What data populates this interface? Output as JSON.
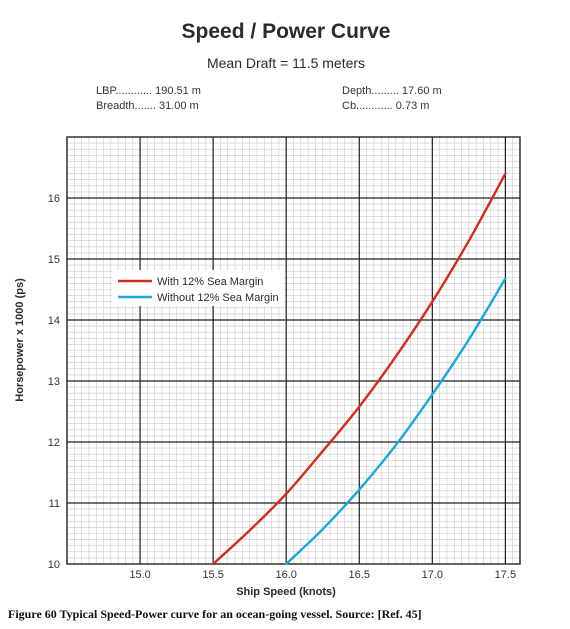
{
  "chart_data": {
    "type": "line",
    "title": "Speed / Power Curve",
    "subtitle": "Mean Draft = 11.5 meters",
    "specs": {
      "lbp": "LBP............ 190.51 m",
      "breadth": "Breadth....... 31.00 m",
      "depth": "Depth......... 17.60 m",
      "cb": "Cb............ 0.73 m"
    },
    "xlabel": "Ship Speed (knots)",
    "ylabel": "Horsepower x 1000 (ps)",
    "xlim": [
      14.5,
      17.6
    ],
    "ylim": [
      10,
      17
    ],
    "x_ticks": [
      "15.0",
      "15.5",
      "16.0",
      "16.5",
      "17.0",
      "17.5"
    ],
    "y_ticks": [
      "10",
      "11",
      "12",
      "13",
      "14",
      "15",
      "16"
    ],
    "grid": true,
    "legend_position": "left-center",
    "series": [
      {
        "name": "With 12% Sea Margin",
        "color": "#d42b1e",
        "x": [
          15.5,
          15.75,
          16.0,
          16.25,
          16.5,
          16.75,
          17.0,
          17.25,
          17.5
        ],
        "y": [
          10.0,
          10.55,
          11.15,
          11.85,
          12.58,
          13.4,
          14.3,
          15.3,
          16.4
        ]
      },
      {
        "name": "Without 12% Sea Margin",
        "color": "#1aa7e0",
        "x": [
          16.0,
          16.25,
          16.5,
          16.75,
          17.0,
          17.25,
          17.5
        ],
        "y": [
          10.0,
          10.57,
          11.22,
          11.95,
          12.78,
          13.68,
          14.68
        ]
      }
    ]
  },
  "caption": "Figure 60  Typical Speed-Power curve for an ocean-going vessel. Source:  [Ref. 45]"
}
